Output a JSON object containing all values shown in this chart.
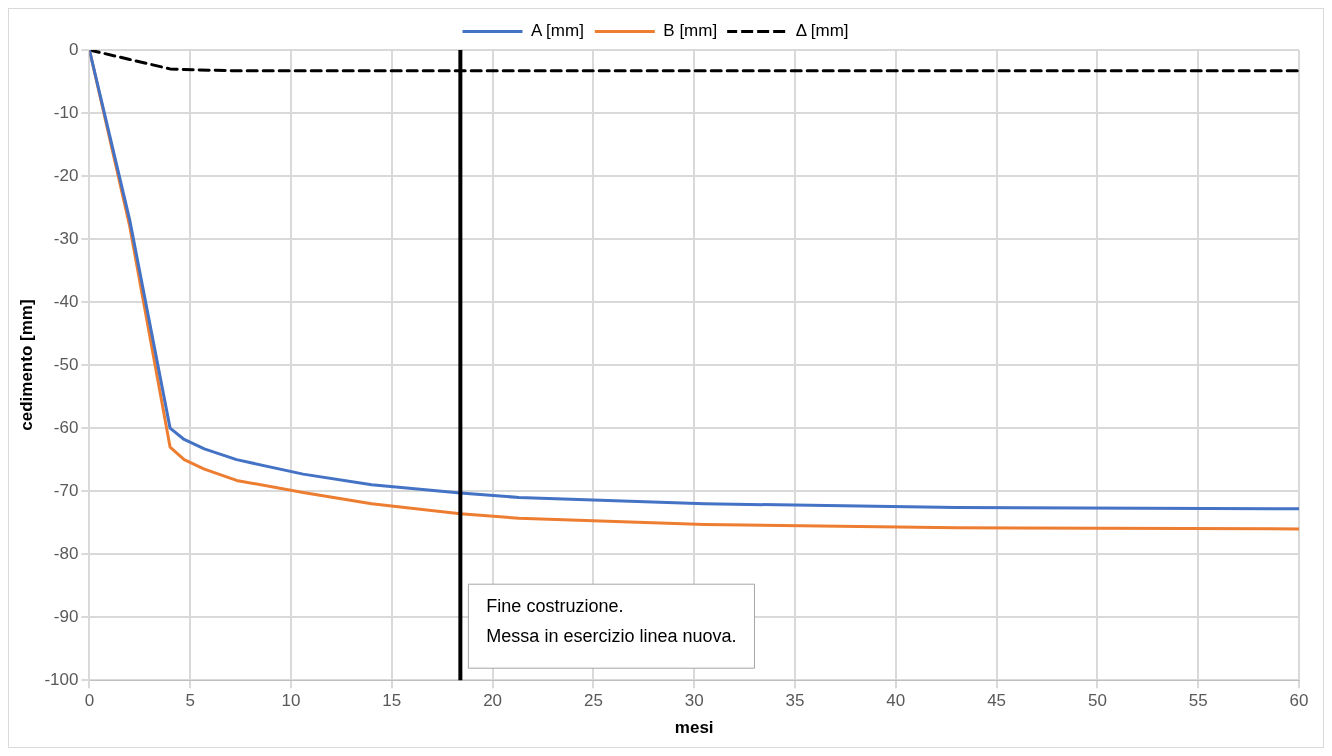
{
  "chart_data": {
    "type": "line",
    "xlabel": "mesi",
    "ylabel": "cedimento [mm]",
    "xlim": [
      0,
      60
    ],
    "ylim": [
      -100,
      0
    ],
    "xticks": [
      0,
      5,
      10,
      15,
      20,
      25,
      30,
      35,
      40,
      45,
      50,
      55,
      60
    ],
    "yticks": [
      -100,
      -90,
      -80,
      -70,
      -60,
      -50,
      -40,
      -30,
      -20,
      -10,
      0
    ],
    "grid": true,
    "legend": "top",
    "marker": "none",
    "series": [
      {
        "name": "A [mm]",
        "color": "#4472c4",
        "line_style": "solid",
        "x": [
          0,
          2,
          4,
          4.7,
          5.7,
          7.3,
          10.6,
          14,
          18.4,
          21.3,
          30.5,
          43,
          60
        ],
        "values": [
          0,
          -27,
          -60,
          -61.8,
          -63.3,
          -65,
          -67.3,
          -69,
          -70.3,
          -71,
          -72,
          -72.6,
          -72.8
        ]
      },
      {
        "name": "B [mm]",
        "color": "#ed7d31",
        "line_style": "solid",
        "x": [
          0,
          2,
          4,
          4.7,
          5.7,
          7.3,
          10.6,
          14,
          18.4,
          21.3,
          30.5,
          43,
          60
        ],
        "values": [
          0,
          -28,
          -63,
          -65,
          -66.5,
          -68.3,
          -70.2,
          -72,
          -73.6,
          -74.3,
          -75.3,
          -75.8,
          -76
        ]
      },
      {
        "name": "Δ [mm]",
        "color": "#000000",
        "line_style": "dashed",
        "x": [
          0,
          2,
          4,
          4.7,
          7.3,
          18.4,
          60
        ],
        "values": [
          0,
          -1.5,
          -3,
          -3.1,
          -3.3,
          -3.3,
          -3.3
        ]
      }
    ],
    "ref_lines": [
      {
        "axis": "x",
        "value": 18.4,
        "color": "#000000",
        "line_style": "solid",
        "label": "Fine costruzione.\nMessa in esercizio linea nuova."
      }
    ]
  }
}
